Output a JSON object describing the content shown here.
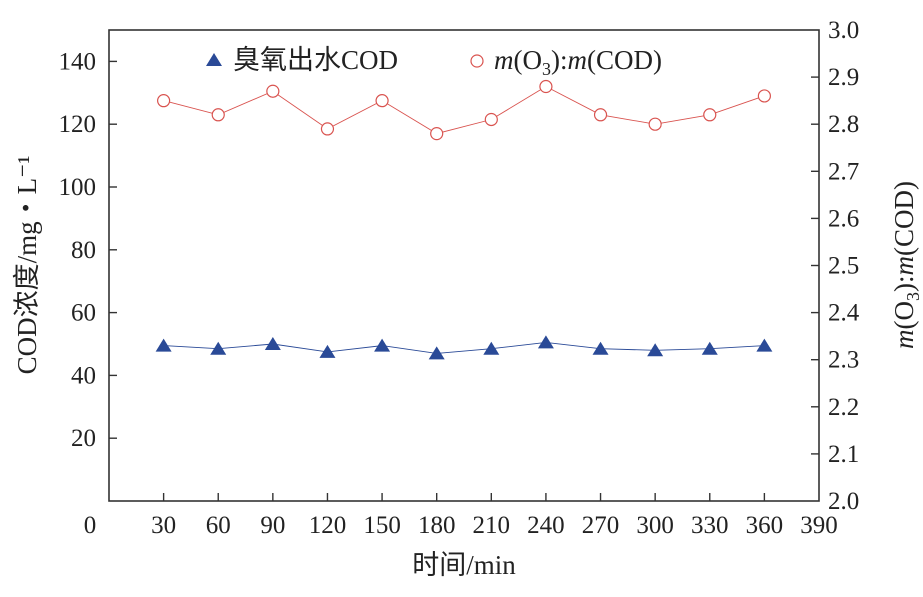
{
  "chart_data": {
    "type": "line",
    "title": "",
    "xlabel": "时间/min",
    "ylabel_left": "COD浓度/mg・L⁻¹",
    "ylabel_right_parts": [
      "m",
      "(O",
      "3",
      "):",
      "m",
      "(COD)"
    ],
    "x_ticks": [
      0,
      30,
      60,
      90,
      120,
      150,
      180,
      210,
      240,
      270,
      300,
      330,
      360,
      390
    ],
    "xlim": [
      0,
      390
    ],
    "y_left_ticks": [
      20,
      40,
      60,
      80,
      100,
      120,
      140
    ],
    "y_left_lim": [
      0,
      150
    ],
    "y_right_ticks": [
      "2.0",
      "2.1",
      "2.2",
      "2.3",
      "2.4",
      "2.5",
      "2.6",
      "2.7",
      "2.8",
      "2.9",
      "3.0"
    ],
    "y_right_lim": [
      2.0,
      3.0
    ],
    "x": [
      30,
      60,
      90,
      120,
      150,
      180,
      210,
      240,
      270,
      300,
      330,
      360
    ],
    "series": [
      {
        "name": "臭氧出水COD",
        "axis": "left",
        "marker": "filled-triangle",
        "color": "#2a4a97",
        "values": [
          49.5,
          48.5,
          50,
          47.5,
          49.5,
          47,
          48.5,
          50.5,
          48.5,
          48,
          48.5,
          49.5
        ]
      },
      {
        "name_parts": [
          "m",
          "(O",
          "3",
          "):",
          "m",
          "(COD)"
        ],
        "axis": "right",
        "marker": "open-circle",
        "color": "#d9534f",
        "values": [
          2.85,
          2.82,
          2.87,
          2.79,
          2.85,
          2.78,
          2.81,
          2.88,
          2.82,
          2.8,
          2.82,
          2.86
        ]
      }
    ],
    "grid": false,
    "legend_position": "top"
  }
}
